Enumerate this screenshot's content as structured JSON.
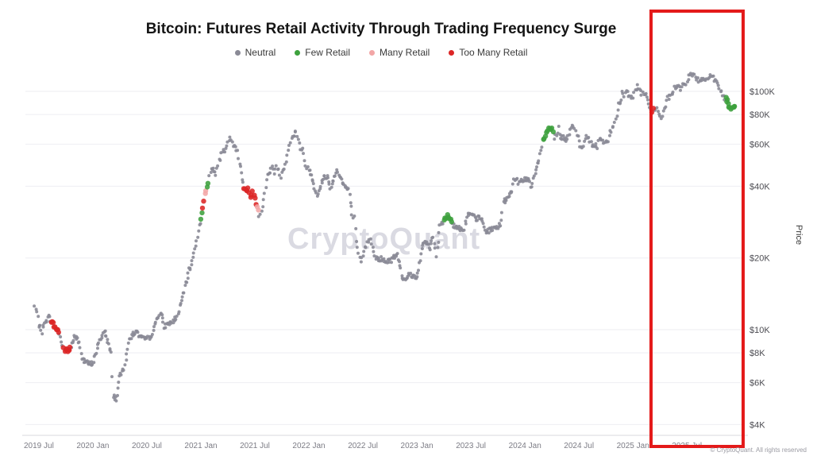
{
  "footer": {
    "copyright": "© CryptoQuant. All rights reserved"
  },
  "chart_data": {
    "type": "scatter",
    "title": "Bitcoin: Futures Retail Activity Through Trading Frequency Surge",
    "watermark": "CryptoQuant",
    "ylabel": "Price",
    "y_scale": "log",
    "ylim": [
      4000,
      130000
    ],
    "x_range_years": [
      2019.42,
      2026.02
    ],
    "legend": [
      {
        "label": "Neutral",
        "color": "#8a8a96"
      },
      {
        "label": "Few Retail",
        "color": "#3da13d"
      },
      {
        "label": "Many Retail",
        "color": "#f2a6a6"
      },
      {
        "label": "Too Many Retail",
        "color": "#dc2626"
      }
    ],
    "y_ticks": [
      {
        "label": "$100K",
        "value": 100000
      },
      {
        "label": "$80K",
        "value": 80000
      },
      {
        "label": "$60K",
        "value": 60000
      },
      {
        "label": "$40K",
        "value": 40000
      },
      {
        "label": "$20K",
        "value": 20000
      },
      {
        "label": "$10K",
        "value": 10000
      },
      {
        "label": "$8K",
        "value": 8000
      },
      {
        "label": "$6K",
        "value": 6000
      },
      {
        "label": "$4K",
        "value": 4000
      }
    ],
    "x_ticks": [
      {
        "label": "2019 Jul",
        "t": 2019.5
      },
      {
        "label": "2020 Jan",
        "t": 2020.0
      },
      {
        "label": "2020 Jul",
        "t": 2020.5
      },
      {
        "label": "2021 Jan",
        "t": 2021.0
      },
      {
        "label": "2021 Jul",
        "t": 2021.5
      },
      {
        "label": "2022 Jan",
        "t": 2022.0
      },
      {
        "label": "2022 Jul",
        "t": 2022.5
      },
      {
        "label": "2023 Jan",
        "t": 2023.0
      },
      {
        "label": "2023 Jul",
        "t": 2023.5
      },
      {
        "label": "2024 Jan",
        "t": 2024.0
      },
      {
        "label": "2024 Jul",
        "t": 2024.5
      },
      {
        "label": "2025 Jan",
        "t": 2025.0
      },
      {
        "label": "2025 Jul",
        "t": 2025.5
      }
    ],
    "annotation": {
      "highlight_box": {
        "t_start": 2025.2,
        "t_end": 2025.99,
        "color": "#e41a1a"
      }
    },
    "point_format": "[decimal_year, price_usd, category_index]",
    "points": [
      [
        2019.46,
        12500,
        0
      ],
      [
        2019.48,
        11800,
        0
      ],
      [
        2019.5,
        10600,
        0
      ],
      [
        2019.53,
        9800,
        0
      ],
      [
        2019.56,
        10900,
        0
      ],
      [
        2019.59,
        11300,
        0
      ],
      [
        2019.62,
        10800,
        3
      ],
      [
        2019.64,
        10400,
        3
      ],
      [
        2019.66,
        10100,
        3
      ],
      [
        2019.69,
        9700,
        0
      ],
      [
        2019.71,
        8900,
        0
      ],
      [
        2019.73,
        8300,
        3
      ],
      [
        2019.75,
        8200,
        3
      ],
      [
        2019.77,
        8100,
        3
      ],
      [
        2019.8,
        8500,
        0
      ],
      [
        2019.83,
        9300,
        0
      ],
      [
        2019.86,
        9100,
        0
      ],
      [
        2019.88,
        8600,
        0
      ],
      [
        2019.9,
        7600,
        0
      ],
      [
        2019.93,
        7300,
        0
      ],
      [
        2019.96,
        7200,
        0
      ],
      [
        2020.0,
        7200,
        0
      ],
      [
        2020.04,
        8300,
        0
      ],
      [
        2020.08,
        9400,
        0
      ],
      [
        2020.11,
        9900,
        0
      ],
      [
        2020.14,
        8800,
        0
      ],
      [
        2020.17,
        7900,
        0
      ],
      [
        2020.19,
        5300,
        0
      ],
      [
        2020.22,
        5100,
        0
      ],
      [
        2020.25,
        6300,
        0
      ],
      [
        2020.29,
        6900,
        0
      ],
      [
        2020.33,
        8800,
        0
      ],
      [
        2020.37,
        9600,
        0
      ],
      [
        2020.4,
        9800,
        0
      ],
      [
        2020.44,
        9300,
        0
      ],
      [
        2020.48,
        9100,
        0
      ],
      [
        2020.52,
        9200,
        0
      ],
      [
        2020.56,
        9800,
        0
      ],
      [
        2020.6,
        11400,
        0
      ],
      [
        2020.63,
        11700,
        0
      ],
      [
        2020.66,
        10300,
        0
      ],
      [
        2020.7,
        10600,
        0
      ],
      [
        2020.74,
        10800,
        0
      ],
      [
        2020.78,
        11300,
        0
      ],
      [
        2020.82,
        13200,
        0
      ],
      [
        2020.86,
        15500,
        0
      ],
      [
        2020.89,
        17800,
        0
      ],
      [
        2020.92,
        19200,
        0
      ],
      [
        2020.96,
        23800,
        0
      ],
      [
        2021.0,
        29500,
        1
      ],
      [
        2021.02,
        33000,
        3
      ],
      [
        2021.04,
        36500,
        2
      ],
      [
        2021.06,
        39500,
        1
      ],
      [
        2021.08,
        44000,
        0
      ],
      [
        2021.1,
        47000,
        0
      ],
      [
        2021.12,
        48500,
        0
      ],
      [
        2021.14,
        44500,
        0
      ],
      [
        2021.16,
        49000,
        0
      ],
      [
        2021.18,
        52500,
        0
      ],
      [
        2021.2,
        56500,
        0
      ],
      [
        2021.22,
        55000,
        0
      ],
      [
        2021.24,
        58500,
        0
      ],
      [
        2021.26,
        62500,
        0
      ],
      [
        2021.28,
        63500,
        0
      ],
      [
        2021.3,
        59000,
        0
      ],
      [
        2021.32,
        57500,
        0
      ],
      [
        2021.34,
        55500,
        0
      ],
      [
        2021.36,
        50000,
        0
      ],
      [
        2021.38,
        43000,
        0
      ],
      [
        2021.4,
        40000,
        3
      ],
      [
        2021.42,
        38000,
        3
      ],
      [
        2021.44,
        39500,
        3
      ],
      [
        2021.46,
        36500,
        3
      ],
      [
        2021.48,
        38000,
        3
      ],
      [
        2021.5,
        35000,
        3
      ],
      [
        2021.52,
        32500,
        2
      ],
      [
        2021.54,
        30500,
        0
      ],
      [
        2021.56,
        31800,
        0
      ],
      [
        2021.58,
        34500,
        0
      ],
      [
        2021.6,
        39800,
        0
      ],
      [
        2021.62,
        44600,
        0
      ],
      [
        2021.64,
        46400,
        0
      ],
      [
        2021.66,
        47600,
        0
      ],
      [
        2021.68,
        45900,
        0
      ],
      [
        2021.7,
        48800,
        0
      ],
      [
        2021.72,
        46300,
        0
      ],
      [
        2021.74,
        44100,
        0
      ],
      [
        2021.76,
        47100,
        0
      ],
      [
        2021.78,
        49300,
        0
      ],
      [
        2021.8,
        54200,
        0
      ],
      [
        2021.82,
        59800,
        0
      ],
      [
        2021.84,
        62900,
        0
      ],
      [
        2021.86,
        65400,
        0
      ],
      [
        2021.88,
        67500,
        0
      ],
      [
        2021.9,
        63400,
        0
      ],
      [
        2021.92,
        57600,
        0
      ],
      [
        2021.94,
        56900,
        0
      ],
      [
        2021.96,
        50900,
        0
      ],
      [
        2021.98,
        48400,
        0
      ],
      [
        2022.0,
        47000,
        0
      ],
      [
        2022.03,
        43500,
        0
      ],
      [
        2022.06,
        38500,
        0
      ],
      [
        2022.08,
        37000,
        0
      ],
      [
        2022.11,
        40000,
        0
      ],
      [
        2022.14,
        43500,
        0
      ],
      [
        2022.17,
        44000,
        0
      ],
      [
        2022.2,
        39500,
        0
      ],
      [
        2022.23,
        42500,
        0
      ],
      [
        2022.26,
        46500,
        0
      ],
      [
        2022.28,
        45500,
        0
      ],
      [
        2022.31,
        41500,
        0
      ],
      [
        2022.34,
        39500,
        0
      ],
      [
        2022.37,
        38500,
        0
      ],
      [
        2022.4,
        30500,
        0
      ],
      [
        2022.42,
        29500,
        0
      ],
      [
        2022.44,
        23000,
        0
      ],
      [
        2022.46,
        20500,
        0
      ],
      [
        2022.48,
        19200,
        0
      ],
      [
        2022.5,
        20500,
        0
      ],
      [
        2022.52,
        21800,
        0
      ],
      [
        2022.54,
        23200,
        0
      ],
      [
        2022.56,
        24100,
        0
      ],
      [
        2022.58,
        23300,
        0
      ],
      [
        2022.6,
        21500,
        0
      ],
      [
        2022.62,
        20100,
        0
      ],
      [
        2022.65,
        19800,
        0
      ],
      [
        2022.68,
        19900,
        0
      ],
      [
        2022.7,
        19200,
        0
      ],
      [
        2022.73,
        19400,
        0
      ],
      [
        2022.76,
        19600,
        0
      ],
      [
        2022.79,
        20300,
        0
      ],
      [
        2022.82,
        20500,
        0
      ],
      [
        2022.85,
        18200,
        0
      ],
      [
        2022.87,
        16300,
        0
      ],
      [
        2022.9,
        16600,
        0
      ],
      [
        2022.93,
        17100,
        0
      ],
      [
        2022.96,
        16800,
        0
      ],
      [
        2023.0,
        16600,
        0
      ],
      [
        2023.03,
        19800,
        0
      ],
      [
        2023.06,
        23100,
        0
      ],
      [
        2023.09,
        23300,
        0
      ],
      [
        2023.12,
        21900,
        0
      ],
      [
        2023.14,
        24600,
        0
      ],
      [
        2023.16,
        23200,
        0
      ],
      [
        2023.18,
        20400,
        0
      ],
      [
        2023.21,
        27600,
        0
      ],
      [
        2023.23,
        28300,
        0
      ],
      [
        2023.25,
        28500,
        1
      ],
      [
        2023.27,
        29800,
        1
      ],
      [
        2023.29,
        30200,
        1
      ],
      [
        2023.31,
        29300,
        1
      ],
      [
        2023.33,
        27600,
        0
      ],
      [
        2023.36,
        26800,
        0
      ],
      [
        2023.39,
        27300,
        0
      ],
      [
        2023.42,
        25900,
        0
      ],
      [
        2023.44,
        26600,
        0
      ],
      [
        2023.47,
        30400,
        0
      ],
      [
        2023.5,
        30300,
        0
      ],
      [
        2023.52,
        29900,
        0
      ],
      [
        2023.55,
        29200,
        0
      ],
      [
        2023.58,
        29500,
        0
      ],
      [
        2023.6,
        29100,
        0
      ],
      [
        2023.63,
        26000,
        0
      ],
      [
        2023.66,
        25900,
        0
      ],
      [
        2023.69,
        26300,
        0
      ],
      [
        2023.72,
        26800,
        0
      ],
      [
        2023.75,
        27100,
        0
      ],
      [
        2023.78,
        28200,
        0
      ],
      [
        2023.8,
        34600,
        0
      ],
      [
        2023.83,
        35100,
        0
      ],
      [
        2023.86,
        36800,
        0
      ],
      [
        2023.88,
        37900,
        0
      ],
      [
        2023.9,
        42100,
        0
      ],
      [
        2023.92,
        43600,
        0
      ],
      [
        2023.94,
        41600,
        0
      ],
      [
        2023.97,
        42900,
        0
      ],
      [
        2024.0,
        42400,
        0
      ],
      [
        2024.03,
        43000,
        0
      ],
      [
        2024.06,
        39600,
        0
      ],
      [
        2024.08,
        43100,
        0
      ],
      [
        2024.11,
        48200,
        0
      ],
      [
        2024.13,
        52100,
        0
      ],
      [
        2024.15,
        57500,
        0
      ],
      [
        2024.17,
        62000,
        1
      ],
      [
        2024.19,
        66000,
        1
      ],
      [
        2024.21,
        68500,
        1
      ],
      [
        2024.23,
        70500,
        1
      ],
      [
        2024.25,
        69500,
        1
      ],
      [
        2024.27,
        64500,
        0
      ],
      [
        2024.29,
        65500,
        0
      ],
      [
        2024.31,
        70500,
        0
      ],
      [
        2024.33,
        63500,
        0
      ],
      [
        2024.36,
        64500,
        0
      ],
      [
        2024.38,
        62500,
        0
      ],
      [
        2024.4,
        63800,
        0
      ],
      [
        2024.42,
        67800,
        0
      ],
      [
        2024.44,
        71200,
        0
      ],
      [
        2024.46,
        69300,
        0
      ],
      [
        2024.48,
        66100,
        0
      ],
      [
        2024.5,
        61000,
        0
      ],
      [
        2024.52,
        57800,
        0
      ],
      [
        2024.54,
        58200,
        0
      ],
      [
        2024.56,
        64600,
        0
      ],
      [
        2024.58,
        65200,
        0
      ],
      [
        2024.6,
        61200,
        0
      ],
      [
        2024.62,
        59400,
        0
      ],
      [
        2024.65,
        59100,
        0
      ],
      [
        2024.67,
        58900,
        0
      ],
      [
        2024.69,
        63200,
        0
      ],
      [
        2024.71,
        62800,
        0
      ],
      [
        2024.73,
        60800,
        0
      ],
      [
        2024.75,
        63300,
        0
      ],
      [
        2024.77,
        62100,
        0
      ],
      [
        2024.79,
        67600,
        0
      ],
      [
        2024.81,
        69400,
        0
      ],
      [
        2024.83,
        72700,
        0
      ],
      [
        2024.85,
        78000,
        0
      ],
      [
        2024.87,
        88500,
        0
      ],
      [
        2024.89,
        92000,
        0
      ],
      [
        2024.9,
        98000,
        0
      ],
      [
        2024.92,
        95600,
        0
      ],
      [
        2024.94,
        101500,
        0
      ],
      [
        2024.96,
        97200,
        0
      ],
      [
        2024.98,
        94300,
        0
      ],
      [
        2025.0,
        94500,
        0
      ],
      [
        2025.02,
        102100,
        0
      ],
      [
        2025.04,
        104600,
        0
      ],
      [
        2025.06,
        101200,
        0
      ],
      [
        2025.08,
        97900,
        0
      ],
      [
        2025.1,
        96400,
        0
      ],
      [
        2025.12,
        95800,
        0
      ],
      [
        2025.14,
        88000,
        0
      ],
      [
        2025.16,
        84500,
        0
      ],
      [
        2025.18,
        82500,
        3
      ],
      [
        2025.2,
        84000,
        0
      ],
      [
        2025.22,
        87000,
        0
      ],
      [
        2025.24,
        79000,
        0
      ],
      [
        2025.26,
        77500,
        0
      ],
      [
        2025.28,
        81500,
        0
      ],
      [
        2025.3,
        87500,
        0
      ],
      [
        2025.32,
        94500,
        0
      ],
      [
        2025.34,
        94300,
        0
      ],
      [
        2025.36,
        97200,
        0
      ],
      [
        2025.38,
        103600,
        0
      ],
      [
        2025.4,
        104100,
        0
      ],
      [
        2025.42,
        105600,
        0
      ],
      [
        2025.44,
        103100,
        0
      ],
      [
        2025.46,
        108100,
        0
      ],
      [
        2025.48,
        107200,
        0
      ],
      [
        2025.5,
        109600,
        0
      ],
      [
        2025.52,
        117600,
        0
      ],
      [
        2025.54,
        119100,
        0
      ],
      [
        2025.56,
        117200,
        0
      ],
      [
        2025.58,
        113600,
        0
      ],
      [
        2025.6,
        112100,
        0
      ],
      [
        2025.62,
        110900,
        0
      ],
      [
        2025.64,
        113100,
        0
      ],
      [
        2025.66,
        111600,
        0
      ],
      [
        2025.68,
        112900,
        0
      ],
      [
        2025.7,
        115900,
        0
      ],
      [
        2025.72,
        117100,
        0
      ],
      [
        2025.74,
        114200,
        0
      ],
      [
        2025.76,
        111200,
        0
      ],
      [
        2025.78,
        107600,
        0
      ],
      [
        2025.8,
        103100,
        0
      ],
      [
        2025.82,
        99000,
        0
      ],
      [
        2025.84,
        95000,
        0
      ],
      [
        2025.86,
        92500,
        1
      ],
      [
        2025.88,
        89500,
        1
      ],
      [
        2025.9,
        85500,
        1
      ],
      [
        2025.92,
        83800,
        1
      ],
      [
        2025.94,
        86500,
        1
      ]
    ]
  }
}
